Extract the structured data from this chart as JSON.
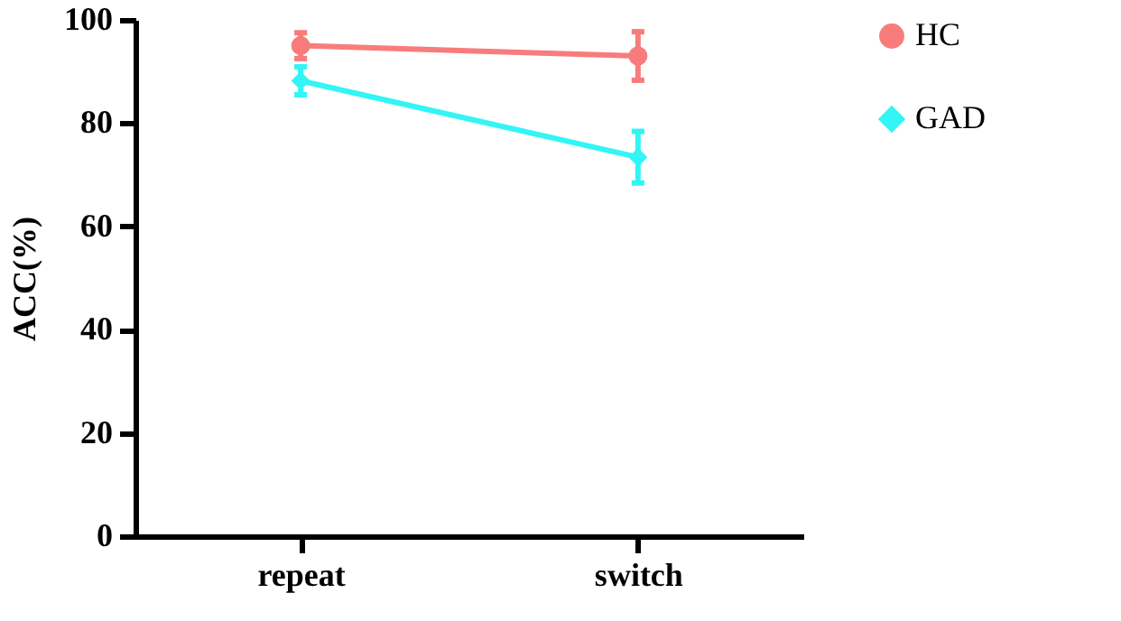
{
  "chart_data": {
    "type": "line",
    "ylabel": "ACC(%)",
    "categories": [
      "repeat",
      "switch"
    ],
    "series": [
      {
        "name": "HC",
        "color": "#f87c7c",
        "marker": "circle",
        "values": [
          95,
          93
        ],
        "errors": [
          2.5,
          4.7
        ]
      },
      {
        "name": "GAD",
        "color": "#33f5f5",
        "marker": "diamond",
        "values": [
          88.2,
          73.4
        ],
        "errors": [
          2.7,
          5
        ]
      }
    ],
    "ylim": [
      0,
      100
    ],
    "yticks": [
      0,
      20,
      40,
      60,
      80,
      100
    ],
    "grid": false,
    "legend": "top right"
  }
}
